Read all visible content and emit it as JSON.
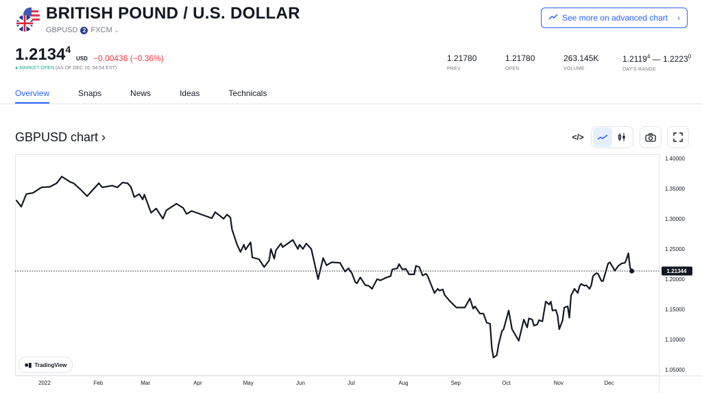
{
  "header": {
    "title": "BRITISH POUND / U.S. DOLLAR",
    "symbol": "GBPUSD",
    "exchange_badge": "2",
    "exchange": "FXCM",
    "advanced_chart_label": "See more on advanced chart"
  },
  "quote": {
    "price_main": "1.2134",
    "price_sup": "4",
    "currency": "USD",
    "change": "−0.00436",
    "change_pct": "(−0.36%)",
    "market_status": "MARKET OPEN",
    "as_of": "(AS OF DEC 16, 04:54 EST)",
    "change_color": "#f23645",
    "status_color": "#22ab94"
  },
  "stats": [
    {
      "value": "1.21780",
      "label": "PREV"
    },
    {
      "value": "1.21780",
      "label": "OPEN"
    },
    {
      "value": "263.145K",
      "label": "VOLUME"
    },
    {
      "value_low": "1.2119",
      "value_low_sup": "4",
      "dash": " — ",
      "value_high": "1.2223",
      "value_high_sup": "0",
      "label": "DAY'S RANGE"
    }
  ],
  "tabs": [
    {
      "label": "Overview",
      "active": true
    },
    {
      "label": "Snaps"
    },
    {
      "label": "News"
    },
    {
      "label": "Ideas"
    },
    {
      "label": "Technicals"
    }
  ],
  "chart_section": {
    "title": "GBPUSD chart ›",
    "toolbar_icons": [
      "embed-code-icon",
      "line-chart-icon",
      "candles-icon",
      "camera-icon",
      "fullscreen-icon"
    ],
    "line_style_active": "line",
    "watermark": "TradingView"
  },
  "chart_data": {
    "type": "line",
    "title": "",
    "xlabel": "",
    "ylabel": "",
    "ylim": [
      1.05,
      1.4
    ],
    "y_ticks": [
      "1.40000",
      "1.35000",
      "1.30000",
      "1.25000",
      "1.20000",
      "1.15000",
      "1.10000",
      "1.05000"
    ],
    "x_ticks": [
      {
        "label": "2022",
        "date": "2022-01-01"
      },
      {
        "label": "Feb",
        "date": "2022-02-01"
      },
      {
        "label": "Mar",
        "date": "2022-03-01"
      },
      {
        "label": "Apr",
        "date": "2022-04-01"
      },
      {
        "label": "May",
        "date": "2022-05-01"
      },
      {
        "label": "Jun",
        "date": "2022-06-01"
      },
      {
        "label": "Jul",
        "date": "2022-07-01"
      },
      {
        "label": "Aug",
        "date": "2022-08-01"
      },
      {
        "label": "Sep",
        "date": "2022-09-01"
      },
      {
        "label": "Oct",
        "date": "2022-10-01"
      },
      {
        "label": "Nov",
        "date": "2022-11-01"
      },
      {
        "label": "Dec",
        "date": "2022-12-01"
      }
    ],
    "last_price_label": "1.21344",
    "last_price": 1.21344,
    "line_color": "#131722",
    "grid": false,
    "points": [
      [
        "2021-12-16",
        1.331
      ],
      [
        "2021-12-19",
        1.32
      ],
      [
        "2021-12-22",
        1.341
      ],
      [
        "2021-12-26",
        1.343
      ],
      [
        "2021-12-31",
        1.352
      ],
      [
        "2022-01-05",
        1.353
      ],
      [
        "2022-01-09",
        1.359
      ],
      [
        "2022-01-12",
        1.37
      ],
      [
        "2022-01-17",
        1.361
      ],
      [
        "2022-01-19",
        1.359
      ],
      [
        "2022-01-23",
        1.349
      ],
      [
        "2022-01-27",
        1.3375
      ],
      [
        "2022-02-03",
        1.359
      ],
      [
        "2022-02-05",
        1.352
      ],
      [
        "2022-02-11",
        1.355
      ],
      [
        "2022-02-14",
        1.352
      ],
      [
        "2022-02-17",
        1.36
      ],
      [
        "2022-02-20",
        1.359
      ],
      [
        "2022-02-22",
        1.353
      ],
      [
        "2022-02-24",
        1.336
      ],
      [
        "2022-02-27",
        1.341
      ],
      [
        "2022-03-01",
        1.332
      ],
      [
        "2022-03-02",
        1.34
      ],
      [
        "2022-03-06",
        1.31
      ],
      [
        "2022-03-09",
        1.317
      ],
      [
        "2022-03-13",
        1.3
      ],
      [
        "2022-03-15",
        1.314
      ],
      [
        "2022-03-21",
        1.325
      ],
      [
        "2022-03-25",
        1.318
      ],
      [
        "2022-03-27",
        1.308
      ],
      [
        "2022-03-30",
        1.313
      ],
      [
        "2022-04-04",
        1.308
      ],
      [
        "2022-04-11",
        1.301
      ],
      [
        "2022-04-13",
        1.311
      ],
      [
        "2022-04-18",
        1.3
      ],
      [
        "2022-04-20",
        1.307
      ],
      [
        "2022-04-22",
        1.302
      ],
      [
        "2022-04-23",
        1.282
      ],
      [
        "2022-04-26",
        1.257
      ],
      [
        "2022-04-28",
        1.245
      ],
      [
        "2022-04-30",
        1.257
      ],
      [
        "2022-05-01",
        1.249
      ],
      [
        "2022-05-04",
        1.261
      ],
      [
        "2022-05-05",
        1.236
      ],
      [
        "2022-05-09",
        1.233
      ],
      [
        "2022-05-12",
        1.22
      ],
      [
        "2022-05-15",
        1.231
      ],
      [
        "2022-05-16",
        1.25
      ],
      [
        "2022-05-18",
        1.234
      ],
      [
        "2022-05-19",
        1.248
      ],
      [
        "2022-05-22",
        1.259
      ],
      [
        "2022-05-23",
        1.253
      ],
      [
        "2022-05-29",
        1.265
      ],
      [
        "2022-06-01",
        1.25
      ],
      [
        "2022-06-02",
        1.257
      ],
      [
        "2022-06-04",
        1.25
      ],
      [
        "2022-06-06",
        1.259
      ],
      [
        "2022-06-09",
        1.25
      ],
      [
        "2022-06-13",
        1.2
      ],
      [
        "2022-06-16",
        1.235
      ],
      [
        "2022-06-18",
        1.223
      ],
      [
        "2022-06-21",
        1.228
      ],
      [
        "2022-06-26",
        1.227
      ],
      [
        "2022-06-29",
        1.2125
      ],
      [
        "2022-07-01",
        1.218
      ],
      [
        "2022-07-03",
        1.21
      ],
      [
        "2022-07-05",
        1.1955
      ],
      [
        "2022-07-06",
        1.193
      ],
      [
        "2022-07-08",
        1.203
      ],
      [
        "2022-07-11",
        1.19
      ],
      [
        "2022-07-13",
        1.189
      ],
      [
        "2022-07-15",
        1.184
      ],
      [
        "2022-07-18",
        1.2
      ],
      [
        "2022-07-20",
        1.198
      ],
      [
        "2022-07-23",
        1.202
      ],
      [
        "2022-07-26",
        1.205
      ],
      [
        "2022-07-27",
        1.216
      ],
      [
        "2022-07-30",
        1.218
      ],
      [
        "2022-07-31",
        1.225
      ],
      [
        "2022-08-02",
        1.216
      ],
      [
        "2022-08-04",
        1.217
      ],
      [
        "2022-08-06",
        1.208
      ],
      [
        "2022-08-09",
        1.208
      ],
      [
        "2022-08-10",
        1.222
      ],
      [
        "2022-08-12",
        1.22
      ],
      [
        "2022-08-14",
        1.206
      ],
      [
        "2022-08-16",
        1.209
      ],
      [
        "2022-08-17",
        1.205
      ],
      [
        "2022-08-21",
        1.177
      ],
      [
        "2022-08-23",
        1.184
      ],
      [
        "2022-08-24",
        1.181
      ],
      [
        "2022-08-26",
        1.183
      ],
      [
        "2022-08-27",
        1.174
      ],
      [
        "2022-08-30",
        1.164
      ],
      [
        "2022-09-03",
        1.153
      ],
      [
        "2022-09-08",
        1.153
      ],
      [
        "2022-09-11",
        1.168
      ],
      [
        "2022-09-13",
        1.151
      ],
      [
        "2022-09-14",
        1.155
      ],
      [
        "2022-09-17",
        1.143
      ],
      [
        "2022-09-19",
        1.143
      ],
      [
        "2022-09-21",
        1.128
      ],
      [
        "2022-09-23",
        1.126
      ],
      [
        "2022-09-24",
        1.086
      ],
      [
        "2022-09-25",
        1.07
      ],
      [
        "2022-09-27",
        1.074
      ],
      [
        "2022-09-28",
        1.091
      ],
      [
        "2022-09-30",
        1.114
      ],
      [
        "2022-10-01",
        1.117
      ],
      [
        "2022-10-04",
        1.148
      ],
      [
        "2022-10-06",
        1.117
      ],
      [
        "2022-10-10",
        1.098
      ],
      [
        "2022-10-13",
        1.133
      ],
      [
        "2022-10-15",
        1.12
      ],
      [
        "2022-10-16",
        1.135
      ],
      [
        "2022-10-18",
        1.133
      ],
      [
        "2022-10-19",
        1.123
      ],
      [
        "2022-10-21",
        1.125
      ],
      [
        "2022-10-22",
        1.132
      ],
      [
        "2022-10-24",
        1.13
      ],
      [
        "2022-10-26",
        1.163
      ],
      [
        "2022-10-28",
        1.158
      ],
      [
        "2022-10-29",
        1.163
      ],
      [
        "2022-10-30",
        1.148
      ],
      [
        "2022-11-01",
        1.149
      ],
      [
        "2022-11-02",
        1.14
      ],
      [
        "2022-11-03",
        1.117
      ],
      [
        "2022-11-05",
        1.132
      ],
      [
        "2022-11-06",
        1.153
      ],
      [
        "2022-11-08",
        1.155
      ],
      [
        "2022-11-09",
        1.136
      ],
      [
        "2022-11-10",
        1.173
      ],
      [
        "2022-11-12",
        1.184
      ],
      [
        "2022-11-14",
        1.177
      ],
      [
        "2022-11-15",
        1.188
      ],
      [
        "2022-11-16",
        1.192
      ],
      [
        "2022-11-18",
        1.189
      ],
      [
        "2022-11-19",
        1.19
      ],
      [
        "2022-11-21",
        1.184
      ],
      [
        "2022-11-22",
        1.19
      ],
      [
        "2022-11-23",
        1.205
      ],
      [
        "2022-11-25",
        1.21
      ],
      [
        "2022-11-26",
        1.209
      ],
      [
        "2022-11-28",
        1.197
      ],
      [
        "2022-11-29",
        1.197
      ],
      [
        "2022-11-30",
        1.207
      ],
      [
        "2022-12-02",
        1.226
      ],
      [
        "2022-12-03",
        1.228
      ],
      [
        "2022-12-06",
        1.214
      ],
      [
        "2022-12-08",
        1.222
      ],
      [
        "2022-12-10",
        1.226
      ],
      [
        "2022-12-12",
        1.227
      ],
      [
        "2022-12-13",
        1.234
      ],
      [
        "2022-12-14",
        1.243
      ],
      [
        "2022-12-15",
        1.219
      ],
      [
        "2022-12-16",
        1.21344
      ]
    ]
  }
}
